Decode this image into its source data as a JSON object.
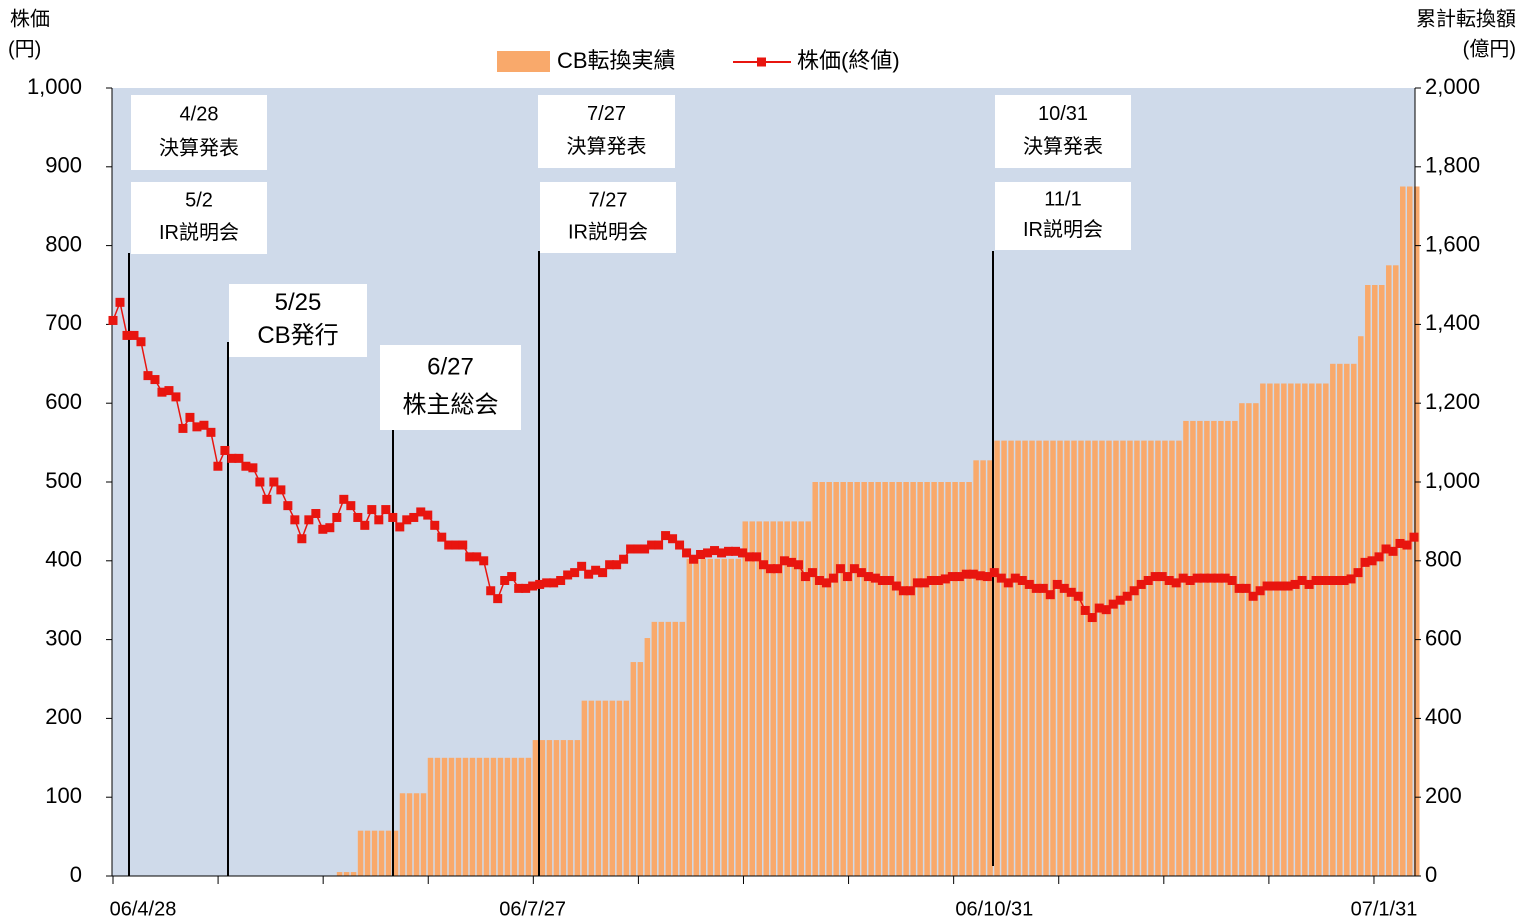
{
  "chart_data": {
    "type": "bar_line",
    "y_axis_label": [
      "株価",
      "(円)"
    ],
    "y2_axis_label": [
      "累計転換額",
      "(億円)"
    ],
    "ylim": [
      0,
      1000
    ],
    "yticks": [
      0,
      100,
      200,
      300,
      400,
      500,
      600,
      700,
      800,
      900,
      {
        "value": 1000,
        "label": "1,000"
      }
    ],
    "y2lim": [
      0,
      2000
    ],
    "y2ticks": [
      0,
      200,
      400,
      600,
      800,
      {
        "value": 1000,
        "label": "1,000"
      },
      {
        "value": 1200,
        "label": "1,200"
      },
      {
        "value": 1400,
        "label": "1,400"
      },
      {
        "value": 1600,
        "label": "1,600"
      },
      {
        "value": 1800,
        "label": "1,800"
      },
      {
        "value": 2000,
        "label": "2,000"
      }
    ],
    "categories": [
      "06/4/28",
      null,
      null,
      null,
      null,
      null,
      null,
      null,
      null,
      null,
      null,
      null,
      null,
      null,
      null,
      null,
      null,
      null,
      null,
      null,
      null,
      null,
      null,
      null,
      null,
      null,
      null,
      null,
      null,
      null,
      null,
      null,
      null,
      null,
      null,
      null,
      null,
      null,
      null,
      null,
      null,
      null,
      null,
      null,
      null,
      null,
      null,
      null,
      null,
      null,
      null,
      null,
      null,
      null,
      null,
      null,
      null,
      null,
      null,
      null,
      "06/7/27",
      null,
      null,
      null,
      null,
      null,
      null,
      null,
      null,
      null,
      null,
      null,
      null,
      null,
      null,
      null,
      null,
      null,
      null,
      null,
      null,
      null,
      null,
      null,
      null,
      null,
      null,
      null,
      null,
      null,
      null,
      null,
      null,
      null,
      null,
      null,
      null,
      null,
      null,
      null,
      null,
      null,
      null,
      null,
      null,
      null,
      null,
      null,
      null,
      null,
      null,
      null,
      null,
      null,
      null,
      null,
      null,
      null,
      null,
      null,
      null,
      null,
      null,
      null,
      null,
      null,
      "06/10/31",
      null,
      null,
      null,
      null,
      null,
      null,
      null,
      null,
      null,
      null,
      null,
      null,
      null,
      null,
      null,
      null,
      null,
      null,
      null,
      null,
      null,
      null,
      null,
      null,
      null,
      null,
      null,
      null,
      null,
      null,
      null,
      null,
      null,
      null,
      null,
      null,
      null,
      null,
      null,
      null,
      null,
      null,
      null,
      null,
      null,
      null,
      null,
      null,
      null,
      null,
      null,
      null,
      null,
      null,
      null,
      null,
      null,
      null,
      null,
      "07/1/31"
    ],
    "series": [
      {
        "name": "CB転換実績",
        "kind": "bar",
        "axis": "y2",
        "color": "#f9a96b",
        "values": [
          0,
          0,
          0,
          0,
          0,
          0,
          0,
          0,
          0,
          0,
          0,
          0,
          0,
          0,
          0,
          0,
          0,
          0,
          0,
          0,
          0,
          0,
          0,
          0,
          0,
          0,
          0,
          0,
          0,
          0,
          0,
          0,
          10,
          10,
          10,
          115,
          115,
          115,
          115,
          115,
          115,
          210,
          210,
          210,
          210,
          300,
          300,
          300,
          300,
          300,
          300,
          300,
          300,
          300,
          300,
          300,
          300,
          300,
          300,
          300,
          345,
          345,
          345,
          345,
          345,
          345,
          345,
          445,
          445,
          445,
          445,
          445,
          445,
          445,
          543,
          543,
          604,
          645,
          645,
          645,
          645,
          645,
          805,
          805,
          805,
          805,
          805,
          805,
          805,
          805,
          900,
          900,
          900,
          900,
          900,
          900,
          900,
          900,
          900,
          900,
          1000,
          1000,
          1000,
          1000,
          1000,
          1000,
          1000,
          1000,
          1000,
          1000,
          1000,
          1000,
          1000,
          1000,
          1000,
          1000,
          1000,
          1000,
          1000,
          1000,
          1000,
          1000,
          1000,
          1055,
          1055,
          1055,
          1105,
          1105,
          1105,
          1105,
          1105,
          1105,
          1105,
          1105,
          1105,
          1105,
          1105,
          1105,
          1105,
          1105,
          1105,
          1105,
          1105,
          1105,
          1105,
          1105,
          1105,
          1105,
          1105,
          1105,
          1105,
          1105,
          1105,
          1155,
          1155,
          1155,
          1155,
          1155,
          1155,
          1155,
          1155,
          1200,
          1200,
          1200,
          1250,
          1250,
          1250,
          1250,
          1250,
          1250,
          1250,
          1250,
          1250,
          1250,
          1300,
          1300,
          1300,
          1300,
          1370,
          1500,
          1500,
          1500,
          1550,
          1550,
          1750,
          1750,
          1750
        ]
      },
      {
        "name": "株価(終値)",
        "kind": "line",
        "axis": "y",
        "color": "#e8150f",
        "values": [
          705,
          728,
          686,
          686,
          678,
          635,
          630,
          614,
          616,
          608,
          568,
          582,
          570,
          572,
          563,
          520,
          540,
          530,
          530,
          520,
          518,
          500,
          478,
          500,
          490,
          470,
          452,
          428,
          452,
          460,
          440,
          442,
          455,
          478,
          470,
          455,
          445,
          465,
          452,
          465,
          455,
          443,
          452,
          455,
          462,
          458,
          445,
          430,
          420,
          420,
          420,
          405,
          405,
          400,
          362,
          352,
          375,
          380,
          365,
          365,
          368,
          370,
          372,
          372,
          375,
          382,
          385,
          393,
          383,
          388,
          385,
          395,
          395,
          402,
          415,
          415,
          415,
          420,
          420,
          432,
          428,
          420,
          410,
          402,
          408,
          410,
          413,
          410,
          412,
          412,
          410,
          405,
          405,
          395,
          390,
          390,
          400,
          398,
          395,
          380,
          385,
          375,
          372,
          378,
          390,
          380,
          390,
          385,
          380,
          378,
          375,
          375,
          368,
          362,
          362,
          372,
          372,
          375,
          375,
          377,
          380,
          380,
          383,
          383,
          381,
          380,
          385,
          378,
          372,
          378,
          375,
          370,
          365,
          365,
          357,
          370,
          365,
          360,
          355,
          337,
          328,
          340,
          338,
          345,
          350,
          355,
          362,
          370,
          375,
          380,
          380,
          375,
          372,
          378,
          375,
          378,
          378,
          378,
          378,
          378,
          375,
          365,
          365,
          355,
          362,
          368,
          368,
          368,
          368,
          370,
          375,
          370,
          375,
          375,
          375,
          375,
          375,
          377,
          385,
          398,
          400,
          405,
          415,
          412,
          422,
          420,
          430
        ]
      }
    ],
    "annotations": [
      {
        "lines": [
          "4/28",
          "決算発表"
        ]
      },
      {
        "lines": [
          "5/2",
          "IR説明会"
        ]
      },
      {
        "lines": [
          "5/25",
          "CB発行"
        ]
      },
      {
        "lines": [
          "6/27",
          "株主総会"
        ]
      },
      {
        "lines": [
          "7/27",
          "決算発表"
        ]
      },
      {
        "lines": [
          "7/27",
          "IR説明会"
        ]
      },
      {
        "lines": [
          "10/31",
          "決算発表"
        ]
      },
      {
        "lines": [
          "11/1",
          "IR説明会"
        ]
      }
    ]
  }
}
